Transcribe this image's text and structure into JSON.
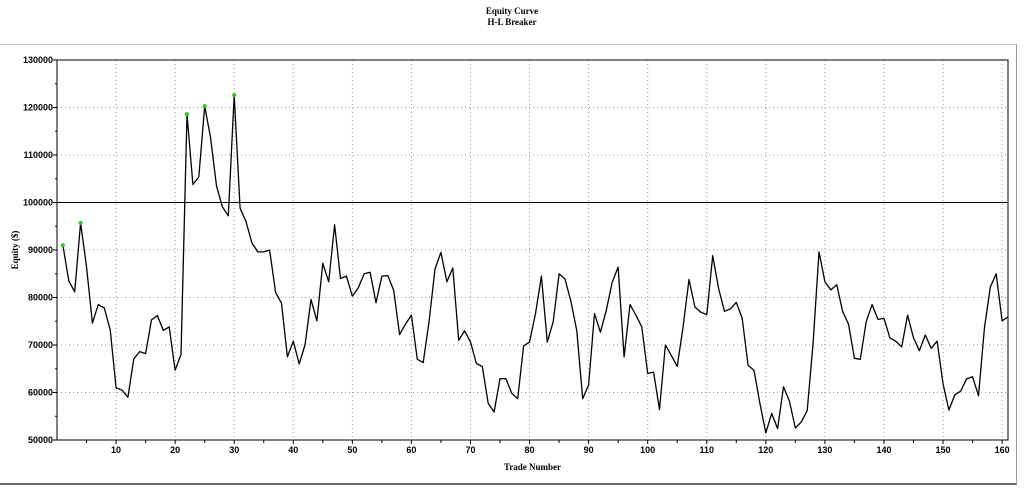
{
  "chart_data": {
    "type": "line",
    "title": "Equity Curve",
    "subtitle": "H-L Breaker",
    "xlabel": "Trade Number",
    "ylabel": "Equity ($)",
    "xlim": [
      0,
      161
    ],
    "ylim": [
      50000,
      130000
    ],
    "x_ticks": [
      10,
      20,
      30,
      40,
      50,
      60,
      70,
      80,
      90,
      100,
      110,
      120,
      130,
      140,
      150,
      160
    ],
    "y_ticks": [
      50000,
      60000,
      70000,
      80000,
      90000,
      100000,
      110000,
      120000,
      130000
    ],
    "reference_line": 100000,
    "grid": true,
    "line_color": "#000000",
    "marker_color": "#22cc22",
    "series": [
      {
        "x": [
          1,
          2,
          3,
          4,
          5,
          6,
          7,
          8,
          9,
          10,
          11,
          12,
          13,
          14,
          15,
          16,
          17,
          18,
          19,
          20,
          21,
          22,
          23,
          24,
          25,
          26,
          27,
          28,
          29,
          30,
          31,
          32,
          33,
          34,
          35,
          36,
          37,
          38,
          39,
          40,
          41,
          42,
          43,
          44,
          45,
          46,
          47,
          48,
          49,
          50,
          51,
          52,
          53,
          54,
          55,
          56,
          57,
          58,
          59,
          60,
          61,
          62,
          63,
          64,
          65,
          66,
          67,
          68,
          69,
          70,
          71,
          72,
          73,
          74,
          75,
          76,
          77,
          78,
          79,
          80,
          81,
          82,
          83,
          84,
          85,
          86,
          87,
          88,
          89,
          90,
          91,
          92,
          93,
          94,
          95,
          96,
          97,
          98,
          99,
          100,
          101,
          102,
          103,
          104,
          105,
          106,
          107,
          108,
          109,
          110,
          111,
          112,
          113,
          114,
          115,
          116,
          117,
          118,
          119,
          120,
          121,
          122,
          123,
          124,
          125,
          126,
          127,
          128,
          129,
          130,
          131,
          132,
          133,
          134,
          135,
          136,
          137,
          138,
          139,
          140,
          141,
          142,
          143,
          144,
          145,
          146,
          147,
          148,
          149,
          150,
          151,
          152,
          153,
          154,
          155,
          156,
          157,
          158,
          159,
          160,
          161
        ],
        "y": [
          91000,
          83500,
          81200,
          95700,
          86500,
          74600,
          78500,
          77800,
          73200,
          61000,
          60500,
          59000,
          67100,
          68600,
          68200,
          75300,
          76200,
          73100,
          73800,
          64700,
          68000,
          118600,
          103800,
          105400,
          120300,
          113600,
          103500,
          99100,
          97200,
          122600,
          98800,
          96000,
          91500,
          89600,
          89600,
          90000,
          81100,
          78800,
          67500,
          70800,
          66000,
          70100,
          79600,
          75100,
          87200,
          83300,
          95300,
          84000,
          84500,
          80300,
          82000,
          85000,
          85300,
          78900,
          84500,
          84600,
          81500,
          72200,
          74400,
          76300,
          67000,
          66300,
          75000,
          86000,
          89500,
          83300,
          86200,
          71000,
          73000,
          70600,
          66100,
          65500,
          57700,
          55900,
          62900,
          62900,
          59800,
          58700,
          69800,
          70600,
          76600,
          84500,
          70600,
          74900,
          85000,
          83900,
          79200,
          73000,
          58700,
          61600,
          76600,
          72700,
          77300,
          83200,
          86400,
          67500,
          78500,
          76300,
          73800,
          64000,
          64300,
          56400,
          70000,
          67800,
          65500,
          73800,
          83800,
          78000,
          76900,
          76400,
          88800,
          81900,
          77100,
          77600,
          79000,
          75600,
          65700,
          64700,
          57700,
          51500,
          55600,
          52400,
          61200,
          58200,
          52500,
          53800,
          56200,
          70400,
          89600,
          83300,
          81600,
          82700,
          77100,
          74400,
          67200,
          67000,
          74900,
          78500,
          75400,
          75600,
          71500,
          70800,
          69600,
          76300,
          71500,
          68800,
          72100,
          69300,
          70800,
          61900,
          56300,
          59500,
          60300,
          62900,
          63300,
          59300,
          73500,
          82200,
          85000,
          75100,
          75900
        ]
      }
    ],
    "highlighted_points_x": [
      1,
      4,
      22,
      25,
      30
    ]
  }
}
